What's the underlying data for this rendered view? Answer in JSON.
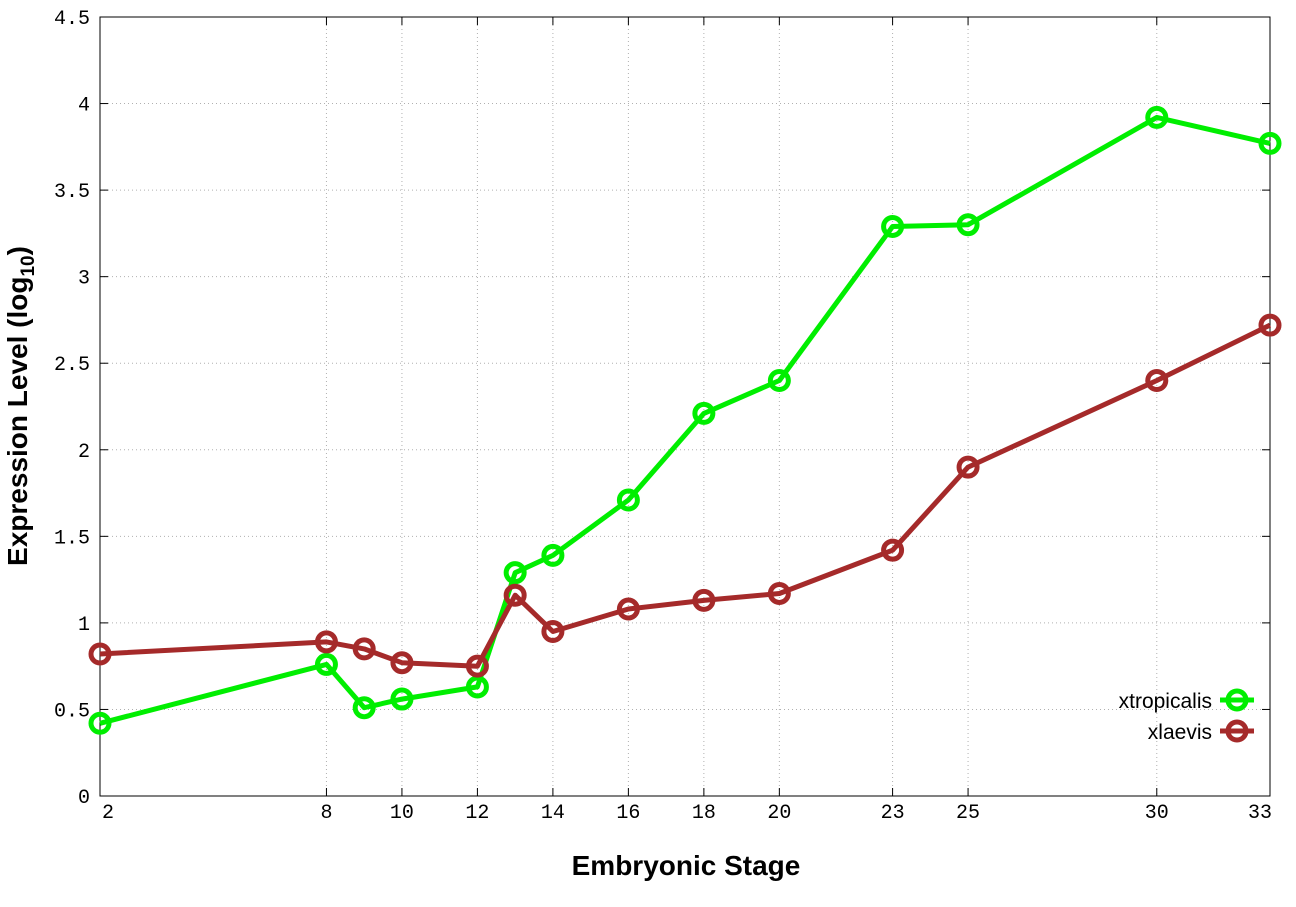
{
  "chart_data": {
    "type": "line",
    "title": "",
    "xlabel": "Embryonic Stage",
    "ylabel": "Expression Level (log",
    "ylabel_sub": "10",
    "ylabel_close": ")",
    "x": [
      2,
      8,
      9,
      10,
      12,
      13,
      14,
      16,
      18,
      20,
      23,
      25,
      30,
      33
    ],
    "x_tick_labels": [
      "2",
      "8",
      "10",
      "12",
      "14",
      "16",
      "18",
      "20",
      "23",
      "25",
      "30",
      "33"
    ],
    "y_tick_labels": [
      "0",
      "0.5",
      "1",
      "1.5",
      "2",
      "2.5",
      "3",
      "3.5",
      "4",
      "4.5"
    ],
    "xlim": [
      2,
      33
    ],
    "ylim": [
      0,
      4.5
    ],
    "grid": true,
    "legend_position": "bottom-right",
    "series": [
      {
        "name": "xtropicalis",
        "color": "#00ee00",
        "values": [
          0.42,
          0.76,
          0.51,
          0.56,
          0.63,
          1.29,
          1.39,
          1.71,
          2.21,
          2.4,
          3.29,
          3.3,
          3.92,
          3.77
        ]
      },
      {
        "name": "xlaevis",
        "color": "#a52a2a",
        "values": [
          0.82,
          0.89,
          0.85,
          0.77,
          0.75,
          1.16,
          0.95,
          1.08,
          1.13,
          1.17,
          1.42,
          1.9,
          2.4,
          2.72
        ]
      }
    ]
  }
}
